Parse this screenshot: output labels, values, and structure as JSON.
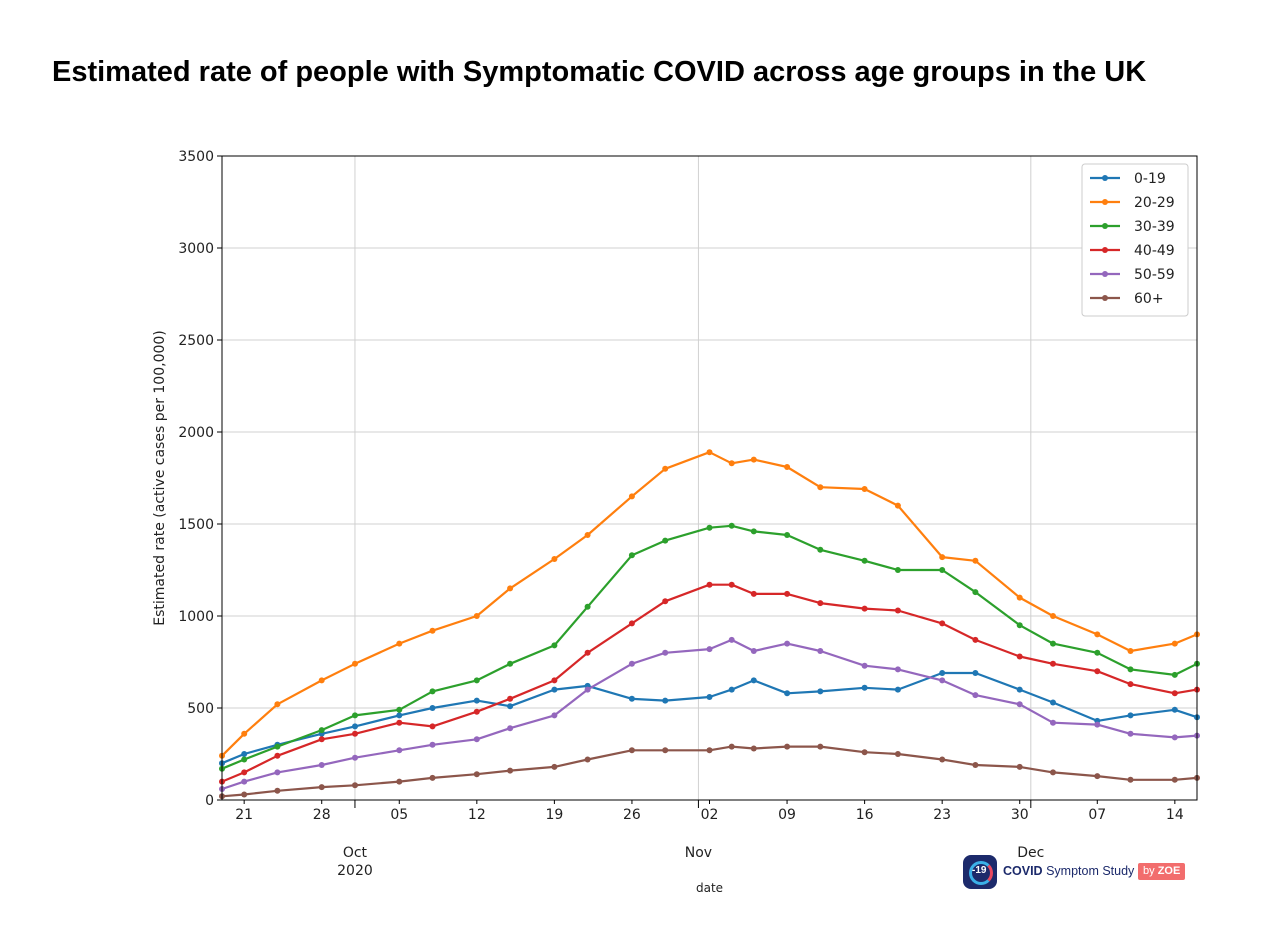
{
  "title": "Estimated rate of people with Symptomatic COVID across age groups in the UK",
  "logo": {
    "badge_text": "-19",
    "brand_bold": "COVID",
    "brand_rest": " Symptom Study",
    "zoe_prefix": "by ",
    "zoe_name": "ZOE"
  },
  "chart_data": {
    "type": "line",
    "xlabel": "date",
    "ylabel": "Estimated rate (active cases per 100,000)",
    "ylim": [
      0,
      3500
    ],
    "yticks": [
      0,
      500,
      1000,
      1500,
      2000,
      2500,
      3000,
      3500
    ],
    "x_start": "2020-09-19",
    "x_end": "2020-12-16",
    "x_day_labels": [
      {
        "date": "2020-09-21",
        "label": "21"
      },
      {
        "date": "2020-09-28",
        "label": "28"
      },
      {
        "date": "2020-10-05",
        "label": "05"
      },
      {
        "date": "2020-10-12",
        "label": "12"
      },
      {
        "date": "2020-10-19",
        "label": "19"
      },
      {
        "date": "2020-10-26",
        "label": "26"
      },
      {
        "date": "2020-11-02",
        "label": "02"
      },
      {
        "date": "2020-11-09",
        "label": "09"
      },
      {
        "date": "2020-11-16",
        "label": "16"
      },
      {
        "date": "2020-11-23",
        "label": "23"
      },
      {
        "date": "2020-11-30",
        "label": "30"
      },
      {
        "date": "2020-12-07",
        "label": "07"
      },
      {
        "date": "2020-12-14",
        "label": "14"
      }
    ],
    "x_month_labels": [
      {
        "date": "2020-10-01",
        "label": "Oct",
        "year": "2020"
      },
      {
        "date": "2020-11-01",
        "label": "Nov",
        "year": ""
      },
      {
        "date": "2020-12-01",
        "label": "Dec",
        "year": ""
      }
    ],
    "grid": true,
    "legend_position": "top-right",
    "x_dates": [
      "2020-09-19",
      "2020-09-21",
      "2020-09-24",
      "2020-09-28",
      "2020-10-01",
      "2020-10-05",
      "2020-10-08",
      "2020-10-12",
      "2020-10-15",
      "2020-10-19",
      "2020-10-22",
      "2020-10-26",
      "2020-10-29",
      "2020-11-02",
      "2020-11-04",
      "2020-11-06",
      "2020-11-09",
      "2020-11-12",
      "2020-11-16",
      "2020-11-19",
      "2020-11-23",
      "2020-11-26",
      "2020-11-30",
      "2020-12-03",
      "2020-12-07",
      "2020-12-10",
      "2020-12-14",
      "2020-12-16"
    ],
    "series": [
      {
        "name": "0-19",
        "color": "#1f77b4",
        "values": [
          200,
          250,
          300,
          360,
          400,
          460,
          500,
          540,
          510,
          600,
          620,
          550,
          540,
          560,
          600,
          650,
          580,
          590,
          610,
          600,
          690,
          690,
          600,
          530,
          430,
          460,
          490,
          450
        ]
      },
      {
        "name": "20-29",
        "color": "#ff7f0e",
        "values": [
          240,
          360,
          520,
          650,
          740,
          850,
          920,
          1000,
          1150,
          1310,
          1440,
          1650,
          1800,
          1890,
          1830,
          1850,
          1810,
          1700,
          1690,
          1600,
          1320,
          1300,
          1100,
          1000,
          900,
          810,
          850,
          900
        ]
      },
      {
        "name": "30-39",
        "color": "#2ca02c",
        "values": [
          170,
          220,
          290,
          380,
          460,
          490,
          590,
          650,
          740,
          840,
          1050,
          1330,
          1410,
          1480,
          1490,
          1460,
          1440,
          1360,
          1300,
          1250,
          1250,
          1130,
          950,
          850,
          800,
          710,
          680,
          740
        ]
      },
      {
        "name": "40-49",
        "color": "#d62728",
        "values": [
          100,
          150,
          240,
          330,
          360,
          420,
          400,
          480,
          550,
          650,
          800,
          960,
          1080,
          1170,
          1170,
          1120,
          1120,
          1070,
          1040,
          1030,
          960,
          870,
          780,
          740,
          700,
          630,
          580,
          600
        ]
      },
      {
        "name": "50-59",
        "color": "#9467bd",
        "values": [
          60,
          100,
          150,
          190,
          230,
          270,
          300,
          330,
          390,
          460,
          600,
          740,
          800,
          820,
          870,
          810,
          850,
          810,
          730,
          710,
          650,
          570,
          520,
          420,
          410,
          360,
          340,
          350
        ]
      },
      {
        "name": "60+",
        "color": "#8c564b",
        "values": [
          20,
          30,
          50,
          70,
          80,
          100,
          120,
          140,
          160,
          180,
          220,
          270,
          270,
          270,
          290,
          280,
          290,
          290,
          260,
          250,
          220,
          190,
          180,
          150,
          130,
          110,
          110,
          120
        ]
      }
    ]
  }
}
